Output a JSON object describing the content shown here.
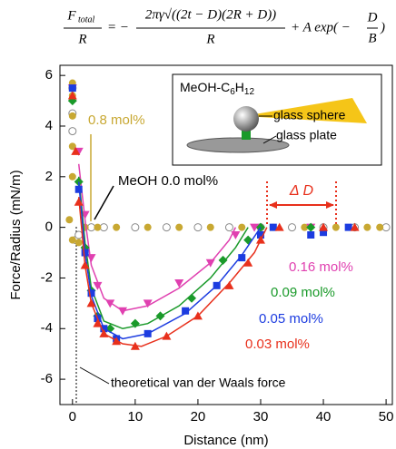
{
  "chart_data": {
    "type": "scatter",
    "formula": {
      "lhs_numerator": "F",
      "lhs_subscript": "total",
      "lhs_denominator": "R",
      "equals": "= −",
      "term1_numerator": "2πγ√((2t − D)(2R + D))",
      "term1_denominator": "R",
      "term2": "+ A exp( −",
      "exp_numerator": "D",
      "exp_denominator": "B",
      "close": ")"
    },
    "x_label": "Distance (nm)",
    "y_label": "Force/Radius (mN/m)",
    "xlim": [
      -2,
      51
    ],
    "ylim": [
      -7,
      6.4
    ],
    "xticks": [
      0,
      10,
      20,
      30,
      40,
      50
    ],
    "yticks": [
      -6,
      -4,
      -2,
      0,
      2,
      4,
      6
    ],
    "inset": {
      "title_parts": [
        "MeOH-C",
        "6",
        "H",
        "12"
      ],
      "labels": [
        "glass sphere",
        "glass plate"
      ]
    },
    "annotations": {
      "vdw": "theoretical van der Waals force",
      "delta": "Δ D"
    },
    "series": [
      {
        "name": "MeOH 0.0 mol%",
        "color": "#ffffff",
        "label_color": "#000000",
        "marker": "circle",
        "x": [
          0,
          0,
          0,
          0.5,
          1,
          3,
          5,
          10,
          15,
          20,
          25,
          30,
          35,
          40,
          45,
          50
        ],
        "values": [
          5.5,
          4.5,
          3.8,
          -0.5,
          -0.3,
          0,
          0,
          0,
          0,
          0,
          0,
          0,
          0,
          0,
          0,
          0
        ]
      },
      {
        "name": "0.8 mol%",
        "color": "#c8a832",
        "label_color": "#c8a832",
        "marker": "circle",
        "x": [
          0,
          0,
          0,
          0,
          0,
          -0.5,
          0,
          1,
          2,
          4,
          7,
          12,
          17,
          22,
          27,
          32,
          37,
          42,
          47,
          49
        ],
        "values": [
          5.7,
          5.2,
          4.4,
          3.2,
          2,
          0.3,
          -0.5,
          -0.6,
          0,
          0,
          0,
          0,
          0,
          0,
          0,
          0,
          0,
          0,
          0,
          0
        ]
      },
      {
        "name": "0.16 mol%",
        "color": "#e040b0",
        "label_color": "#e040b0",
        "marker": "triangle-down",
        "x": [
          0,
          1,
          2,
          3,
          4,
          6,
          8,
          12,
          17,
          22,
          26,
          29,
          38
        ],
        "values": [
          5.5,
          3,
          0.5,
          -1.2,
          -2.3,
          -3,
          -3.3,
          -3,
          -2.2,
          -1.4,
          -0.3,
          0,
          0
        ],
        "fit": {
          "x": [
            1,
            2,
            3,
            5,
            8,
            12,
            17,
            22,
            25,
            26
          ],
          "values": [
            2.5,
            0.3,
            -1.5,
            -2.8,
            -3.3,
            -3.1,
            -2.4,
            -1.4,
            -0.5,
            0
          ]
        }
      },
      {
        "name": "0.09 mol%",
        "color": "#1a9a2a",
        "label_color": "#1a9a2a",
        "marker": "diamond",
        "x": [
          0,
          1,
          2,
          3,
          4,
          6,
          10,
          14,
          19,
          24,
          28,
          30,
          38
        ],
        "values": [
          5,
          1.8,
          -0.8,
          -2.5,
          -3.5,
          -4,
          -3.8,
          -3.5,
          -2.8,
          -1.3,
          -0.5,
          0,
          0
        ],
        "fit": {
          "x": [
            1,
            2,
            3,
            5,
            8,
            12,
            17,
            22,
            26,
            28
          ],
          "values": [
            2,
            -0.6,
            -2.4,
            -3.7,
            -4,
            -3.8,
            -3.1,
            -2,
            -0.8,
            0
          ]
        }
      },
      {
        "name": "0.05 mol%",
        "color": "#1c3ce0",
        "label_color": "#1c3ce0",
        "marker": "square",
        "x": [
          0,
          1,
          2,
          3,
          4,
          5,
          7,
          12,
          18,
          23,
          27,
          30,
          32,
          38,
          40,
          44
        ],
        "values": [
          5.5,
          1.5,
          -1,
          -2.6,
          -3.6,
          -4,
          -4.4,
          -4.2,
          -3.3,
          -2.3,
          -1.2,
          -0.3,
          0,
          -0.3,
          -0.2,
          0
        ],
        "fit": {
          "x": [
            1,
            2,
            3,
            5,
            8,
            12,
            18,
            23,
            27,
            30
          ],
          "values": [
            1.8,
            -1,
            -2.7,
            -4,
            -4.4,
            -4.2,
            -3.4,
            -2.3,
            -1.1,
            0
          ]
        }
      },
      {
        "name": "0.03 mol%",
        "color": "#e8301c",
        "label_color": "#e8301c",
        "marker": "triangle",
        "x": [
          0,
          0.5,
          1,
          2,
          3,
          4,
          5,
          7,
          10,
          15,
          20,
          25,
          28,
          30,
          33,
          40,
          45
        ],
        "values": [
          5.2,
          3,
          1,
          -1.5,
          -3,
          -3.8,
          -4.2,
          -4.5,
          -4.7,
          -4.3,
          -3.5,
          -2.3,
          -1.4,
          -0.5,
          0,
          0,
          0
        ],
        "fit": {
          "x": [
            1,
            2,
            3,
            5,
            8,
            11,
            15,
            20,
            25,
            29,
            31
          ],
          "values": [
            1.2,
            -1.5,
            -3,
            -4.2,
            -4.6,
            -4.7,
            -4.3,
            -3.5,
            -2.2,
            -1,
            0
          ]
        }
      }
    ]
  }
}
